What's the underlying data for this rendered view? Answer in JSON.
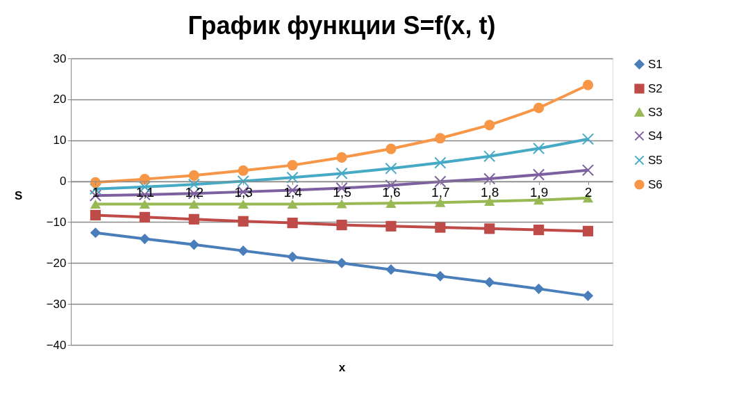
{
  "chart_data": {
    "type": "line",
    "title": "График функции S=f(x, t)",
    "xlabel": "x",
    "ylabel": "S",
    "categories": [
      "1",
      "1,1",
      "1,2",
      "1,3",
      "1,4",
      "1,5",
      "1,6",
      "1,7",
      "1,8",
      "1,9",
      "2"
    ],
    "ylim": [
      -40,
      30
    ],
    "yticks": [
      -40,
      -30,
      -20,
      -10,
      0,
      10,
      20,
      30
    ],
    "grid": "y",
    "legend": "right",
    "series": [
      {
        "name": "S1",
        "color": "#4a7ebb",
        "marker": "diamond",
        "values": [
          -12.6,
          -14.1,
          -15.5,
          -17,
          -18.5,
          -20,
          -21.6,
          -23.2,
          -24.7,
          -26.3,
          -28.0
        ]
      },
      {
        "name": "S2",
        "color": "#be4b48",
        "marker": "square",
        "values": [
          -8.3,
          -8.8,
          -9.3,
          -9.8,
          -10.2,
          -10.7,
          -11.0,
          -11.3,
          -11.6,
          -11.9,
          -12.2
        ]
      },
      {
        "name": "S3",
        "color": "#98b954",
        "marker": "triangle",
        "values": [
          -5.6,
          -5.6,
          -5.6,
          -5.6,
          -5.6,
          -5.5,
          -5.4,
          -5.2,
          -4.9,
          -4.6,
          -4.1
        ]
      },
      {
        "name": "S4",
        "color": "#7d60a0",
        "marker": "cross",
        "values": [
          -3.5,
          -3.3,
          -3.0,
          -2.6,
          -2.2,
          -1.7,
          -1.0,
          -0.1,
          0.6,
          1.6,
          2.7
        ]
      },
      {
        "name": "S5",
        "color": "#46aac5",
        "marker": "cross",
        "values": [
          -1.9,
          -1.4,
          -0.8,
          0,
          0.9,
          1.9,
          3.1,
          4.5,
          6.1,
          8.0,
          10.3
        ]
      },
      {
        "name": "S6",
        "color": "#f79646",
        "marker": "circle",
        "values": [
          -0.3,
          0.5,
          1.4,
          2.6,
          3.9,
          5.8,
          7.9,
          10.5,
          13.7,
          17.9,
          23.5
        ]
      }
    ]
  }
}
